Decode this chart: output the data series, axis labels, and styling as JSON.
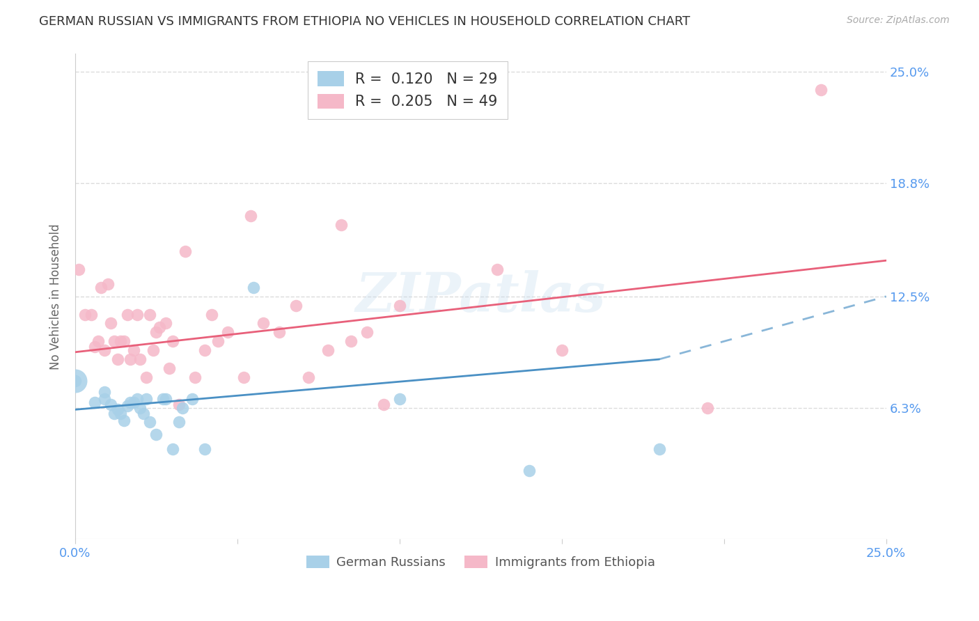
{
  "title": "GERMAN RUSSIAN VS IMMIGRANTS FROM ETHIOPIA NO VEHICLES IN HOUSEHOLD CORRELATION CHART",
  "source": "Source: ZipAtlas.com",
  "ylabel": "No Vehicles in Household",
  "xlim": [
    0.0,
    0.25
  ],
  "ylim": [
    -0.01,
    0.26
  ],
  "ytick_positions": [
    0.063,
    0.125,
    0.188,
    0.25
  ],
  "ytick_labels": [
    "6.3%",
    "12.5%",
    "18.8%",
    "25.0%"
  ],
  "xtick_positions": [
    0.0,
    0.05,
    0.1,
    0.15,
    0.2,
    0.25
  ],
  "xtick_labels": [
    "0.0%",
    "",
    "",
    "",
    "",
    "25.0%"
  ],
  "watermark": "ZIPatlas",
  "legend_blue_r": "0.120",
  "legend_blue_n": "29",
  "legend_pink_r": "0.205",
  "legend_pink_n": "49",
  "legend_blue_label": "German Russians",
  "legend_pink_label": "Immigrants from Ethiopia",
  "blue_color": "#a8d0e8",
  "pink_color": "#f5b8c8",
  "blue_line_color": "#4a90c4",
  "pink_line_color": "#e8607a",
  "blue_x": [
    0.0,
    0.006,
    0.009,
    0.009,
    0.011,
    0.012,
    0.013,
    0.014,
    0.015,
    0.016,
    0.017,
    0.018,
    0.019,
    0.02,
    0.021,
    0.022,
    0.023,
    0.025,
    0.027,
    0.028,
    0.03,
    0.032,
    0.033,
    0.036,
    0.04,
    0.055,
    0.1,
    0.14,
    0.18
  ],
  "blue_y": [
    0.078,
    0.066,
    0.068,
    0.072,
    0.065,
    0.06,
    0.062,
    0.06,
    0.056,
    0.064,
    0.066,
    0.066,
    0.068,
    0.063,
    0.06,
    0.068,
    0.055,
    0.048,
    0.068,
    0.068,
    0.04,
    0.055,
    0.063,
    0.068,
    0.04,
    0.13,
    0.068,
    0.028,
    0.04
  ],
  "pink_x": [
    0.001,
    0.003,
    0.005,
    0.006,
    0.007,
    0.008,
    0.009,
    0.01,
    0.011,
    0.012,
    0.013,
    0.014,
    0.015,
    0.016,
    0.017,
    0.018,
    0.019,
    0.02,
    0.022,
    0.023,
    0.024,
    0.025,
    0.026,
    0.028,
    0.029,
    0.03,
    0.032,
    0.034,
    0.037,
    0.04,
    0.042,
    0.044,
    0.047,
    0.052,
    0.054,
    0.058,
    0.063,
    0.068,
    0.072,
    0.078,
    0.082,
    0.085,
    0.09,
    0.095,
    0.1,
    0.13,
    0.15,
    0.195,
    0.23
  ],
  "pink_y": [
    0.14,
    0.115,
    0.115,
    0.097,
    0.1,
    0.13,
    0.095,
    0.132,
    0.11,
    0.1,
    0.09,
    0.1,
    0.1,
    0.115,
    0.09,
    0.095,
    0.115,
    0.09,
    0.08,
    0.115,
    0.095,
    0.105,
    0.108,
    0.11,
    0.085,
    0.1,
    0.065,
    0.15,
    0.08,
    0.095,
    0.115,
    0.1,
    0.105,
    0.08,
    0.17,
    0.11,
    0.105,
    0.12,
    0.08,
    0.095,
    0.165,
    0.1,
    0.105,
    0.065,
    0.12,
    0.14,
    0.095,
    0.063,
    0.24
  ],
  "blue_line_x0": 0.0,
  "blue_line_x_solid_end": 0.18,
  "blue_line_x_dash_end": 0.25,
  "blue_line_y0": 0.062,
  "blue_line_y_solid_end": 0.09,
  "blue_line_y_dash_end": 0.125,
  "pink_line_x0": 0.0,
  "pink_line_x_end": 0.25,
  "pink_line_y0": 0.094,
  "pink_line_y_end": 0.145,
  "background_color": "#ffffff",
  "grid_color": "#d8d8d8",
  "title_color": "#333333",
  "tick_color": "#5599ee",
  "ylabel_color": "#666666",
  "source_color": "#aaaaaa"
}
